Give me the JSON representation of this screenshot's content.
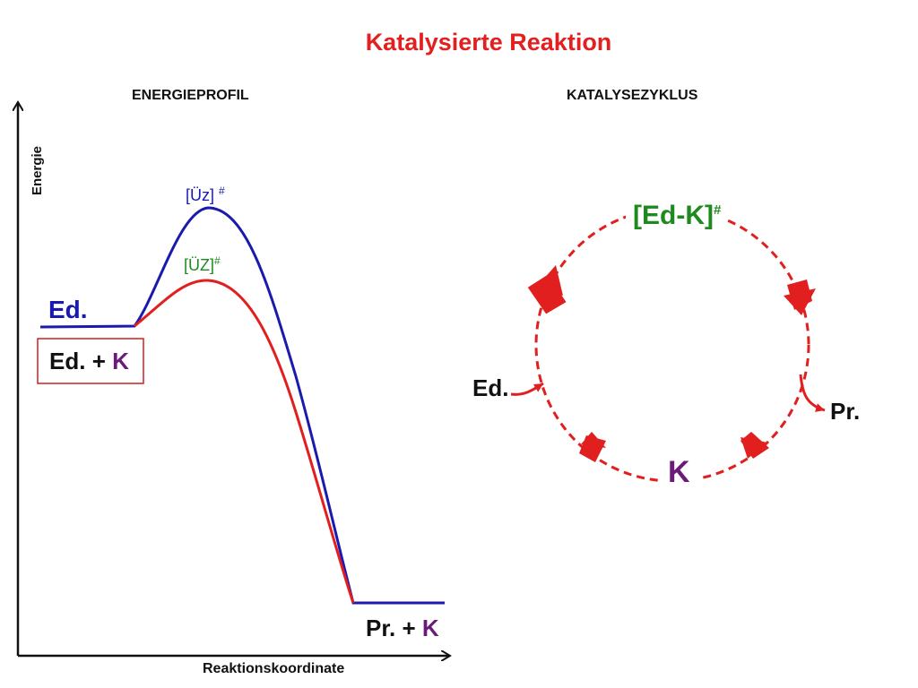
{
  "title": "Katalysierte Reaktion",
  "energy_profile": {
    "heading": "ENERGIEPROFIL",
    "y_axis_label": "Energie",
    "x_axis_label": "Reaktionskoordinate",
    "ts_uncatalyzed": "[Üz]",
    "ts_catalyzed": "[ÜZ]",
    "ts_mark": "#",
    "reactant_label": "Ed.",
    "reactant_catalyst_label": {
      "reactant": "Ed.",
      "plus": "+",
      "catalyst": "K"
    },
    "product_label": {
      "product": "Pr.",
      "plus": "+",
      "catalyst": "K"
    },
    "colors": {
      "uncatalyzed": "#1a1aae",
      "catalyzed": "#e11f1f",
      "ts_catalyzed_text": "#1e8a1e",
      "catalyst": "#6b1a7a"
    }
  },
  "catalytic_cycle": {
    "heading": "KATALYSEZYKLUS",
    "intermediate": "[Ed-K]",
    "intermediate_mark": "#",
    "reactant_in": "Ed.",
    "product_out": "Pr.",
    "catalyst": "K",
    "colors": {
      "cycle": "#e11f1f",
      "intermediate": "#1e8a1e",
      "catalyst": "#6b1a7a"
    }
  }
}
